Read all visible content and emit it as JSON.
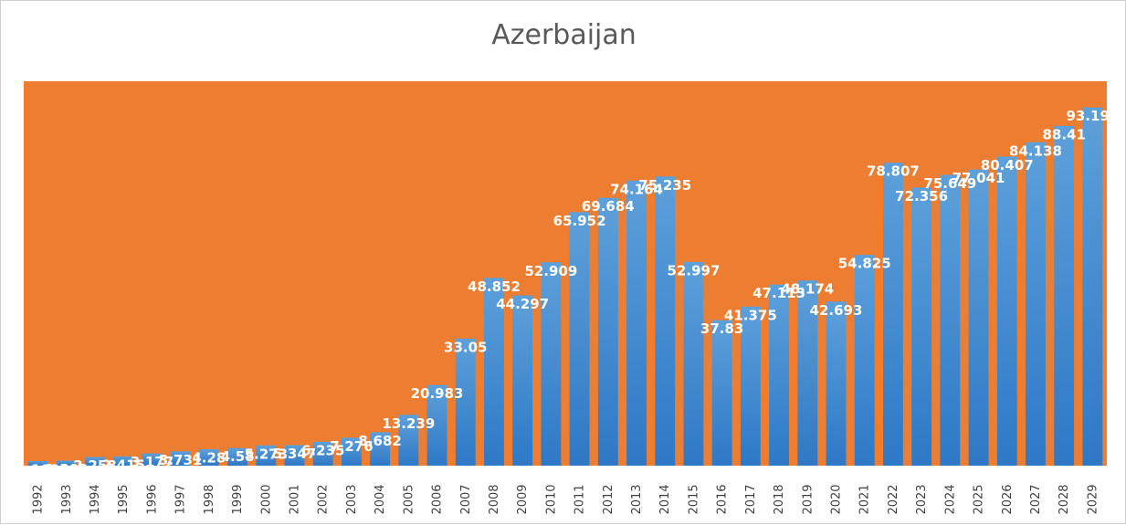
{
  "chart_data": {
    "type": "bar",
    "title": "Azerbaijan",
    "xlabel": "",
    "ylabel": "",
    "ylim": [
      0,
      100
    ],
    "grid": false,
    "legend": "none",
    "plot_background": "#ED7D31",
    "bar_color": "#5B9BD5",
    "categories": [
      "1992",
      "1993",
      "1994",
      "1995",
      "1996",
      "1997",
      "1998",
      "1999",
      "2000",
      "2001",
      "2002",
      "2003",
      "2004",
      "2005",
      "2006",
      "2007",
      "2008",
      "2009",
      "2010",
      "2011",
      "2012",
      "2013",
      "2014",
      "2015",
      "2016",
      "2017",
      "2018",
      "2019",
      "2020",
      "2021",
      "2022",
      "2023",
      "2024",
      "2025",
      "2026",
      "2027",
      "2028",
      "2029"
    ],
    "values": [
      1.193,
      1.309,
      2.258,
      2.415,
      3.177,
      3.731,
      4.28,
      4.58,
      5.273,
      5.347,
      6.235,
      7.276,
      8.682,
      13.239,
      20.983,
      33.05,
      48.852,
      44.297,
      52.909,
      65.952,
      69.684,
      74.164,
      75.235,
      52.997,
      37.83,
      41.375,
      47.113,
      48.174,
      42.693,
      54.825,
      78.807,
      72.356,
      75.649,
      77.041,
      80.407,
      84.138,
      88.41,
      93.195
    ]
  }
}
